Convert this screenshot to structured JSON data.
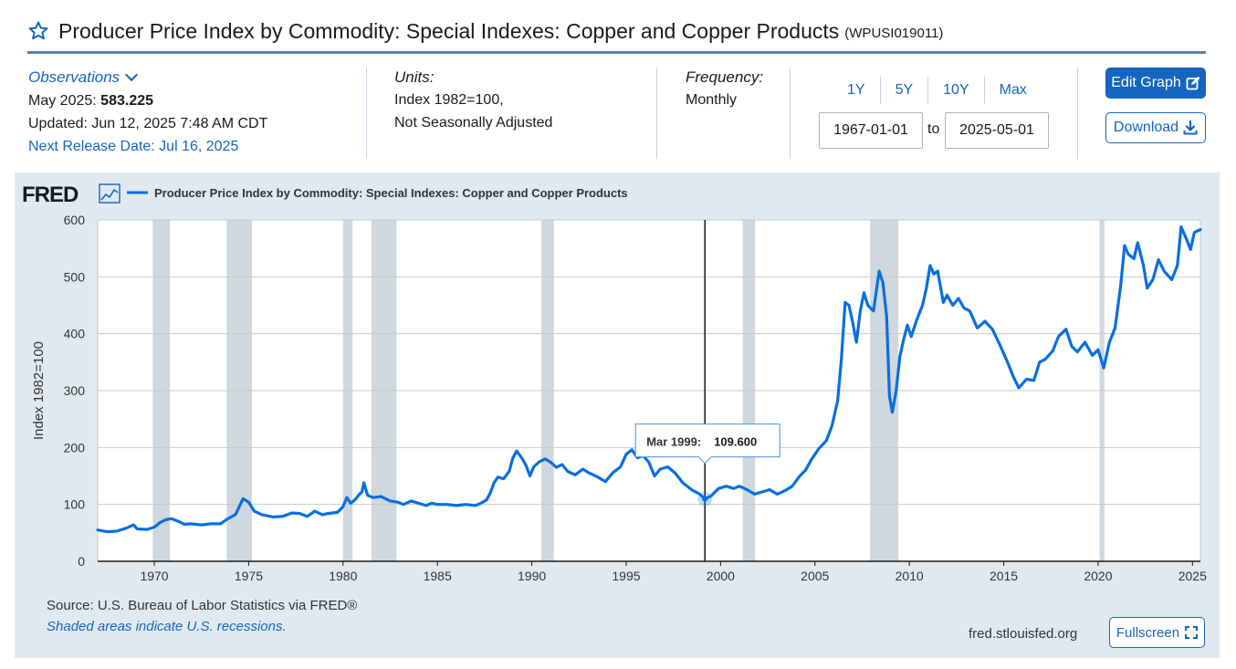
{
  "header": {
    "title": "Producer Price Index by Commodity: Special Indexes: Copper and Copper Products",
    "series_id": "(WPUSI019011)"
  },
  "observations": {
    "toggle_label": "Observations",
    "latest_label": "May 2025:",
    "latest_value": "583.225",
    "updated": "Updated: Jun 12, 2025 7:48 AM CDT",
    "next_release": "Next Release Date: Jul 16, 2025"
  },
  "units": {
    "label": "Units:",
    "line1": "Index 1982=100,",
    "line2": "Not Seasonally Adjusted"
  },
  "frequency": {
    "label": "Frequency:",
    "value": "Monthly"
  },
  "range": {
    "buttons": [
      "1Y",
      "5Y",
      "10Y",
      "Max"
    ],
    "start": "1967-01-01",
    "to_label": "to",
    "end": "2025-05-01"
  },
  "actions": {
    "edit": "Edit Graph",
    "download": "Download",
    "fullscreen": "Fullscreen"
  },
  "footer": {
    "source": "Source: U.S. Bureau of Labor Statistics via FRED®",
    "shading_note": "Shaded areas indicate U.S. recessions.",
    "site": "fred.stlouisfed.org"
  },
  "colors": {
    "accent": "#1565c0",
    "line": "#0a6ee0",
    "recession": "#d0d8df",
    "panel": "#e1e9f0"
  },
  "chart_data": {
    "type": "line",
    "logo": "FRED",
    "legend": "Producer Price Index by Commodity: Special Indexes: Copper and Copper Products",
    "ylabel": "Index 1982=100",
    "xlim": [
      1967.0,
      2025.42
    ],
    "ylim": [
      0,
      600
    ],
    "yticks": [
      0,
      100,
      200,
      300,
      400,
      500,
      600
    ],
    "xticks": [
      1970,
      1975,
      1980,
      1985,
      1990,
      1995,
      2000,
      2005,
      2010,
      2015,
      2020,
      2025
    ],
    "grid": true,
    "recessions": [
      [
        1969.92,
        1970.83
      ],
      [
        1973.83,
        1975.17
      ],
      [
        1980.0,
        1980.5
      ],
      [
        1981.5,
        1982.83
      ],
      [
        1990.5,
        1991.17
      ],
      [
        2001.17,
        2001.83
      ],
      [
        2007.92,
        2009.42
      ],
      [
        2020.08,
        2020.33
      ]
    ],
    "tooltip": {
      "label": "Mar 1999:",
      "value": "109.600",
      "x": 1999.17,
      "y": 109.6
    },
    "series": [
      {
        "name": "Producer Price Index by Commodity: Special Indexes: Copper and Copper Products",
        "points": [
          [
            1967.0,
            55
          ],
          [
            1967.5,
            52
          ],
          [
            1968.0,
            53
          ],
          [
            1968.5,
            58
          ],
          [
            1968.9,
            64
          ],
          [
            1969.1,
            57
          ],
          [
            1969.6,
            56
          ],
          [
            1970.0,
            60
          ],
          [
            1970.3,
            68
          ],
          [
            1970.6,
            73
          ],
          [
            1970.9,
            75
          ],
          [
            1971.3,
            70
          ],
          [
            1971.6,
            65
          ],
          [
            1971.9,
            66
          ],
          [
            1972.5,
            64
          ],
          [
            1973.0,
            66
          ],
          [
            1973.5,
            66
          ],
          [
            1973.9,
            75
          ],
          [
            1974.3,
            82
          ],
          [
            1974.5,
            96
          ],
          [
            1974.7,
            110
          ],
          [
            1975.0,
            104
          ],
          [
            1975.3,
            88
          ],
          [
            1975.7,
            82
          ],
          [
            1976.3,
            78
          ],
          [
            1976.8,
            79
          ],
          [
            1977.3,
            85
          ],
          [
            1977.7,
            84
          ],
          [
            1978.1,
            79
          ],
          [
            1978.5,
            88
          ],
          [
            1978.9,
            82
          ],
          [
            1979.2,
            84
          ],
          [
            1979.7,
            86
          ],
          [
            1980.0,
            96
          ],
          [
            1980.2,
            112
          ],
          [
            1980.4,
            102
          ],
          [
            1980.6,
            107
          ],
          [
            1980.9,
            119
          ],
          [
            1981.0,
            122
          ],
          [
            1981.1,
            138
          ],
          [
            1981.3,
            116
          ],
          [
            1981.6,
            112
          ],
          [
            1982.0,
            114
          ],
          [
            1982.5,
            106
          ],
          [
            1982.9,
            104
          ],
          [
            1983.2,
            100
          ],
          [
            1983.6,
            106
          ],
          [
            1984.0,
            102
          ],
          [
            1984.4,
            98
          ],
          [
            1984.7,
            102
          ],
          [
            1985.0,
            100
          ],
          [
            1985.5,
            100
          ],
          [
            1986.0,
            98
          ],
          [
            1986.5,
            100
          ],
          [
            1987.0,
            98
          ],
          [
            1987.3,
            102
          ],
          [
            1987.6,
            108
          ],
          [
            1987.8,
            120
          ],
          [
            1988.0,
            138
          ],
          [
            1988.2,
            148
          ],
          [
            1988.5,
            145
          ],
          [
            1988.8,
            158
          ],
          [
            1989.0,
            182
          ],
          [
            1989.2,
            194
          ],
          [
            1989.5,
            180
          ],
          [
            1989.7,
            168
          ],
          [
            1989.9,
            150
          ],
          [
            1990.1,
            166
          ],
          [
            1990.4,
            175
          ],
          [
            1990.7,
            180
          ],
          [
            1991.0,
            174
          ],
          [
            1991.3,
            165
          ],
          [
            1991.6,
            170
          ],
          [
            1991.9,
            158
          ],
          [
            1992.3,
            152
          ],
          [
            1992.7,
            162
          ],
          [
            1993.0,
            156
          ],
          [
            1993.5,
            148
          ],
          [
            1993.9,
            140
          ],
          [
            1994.3,
            156
          ],
          [
            1994.7,
            166
          ],
          [
            1995.0,
            188
          ],
          [
            1995.3,
            196
          ],
          [
            1995.6,
            182
          ],
          [
            1995.9,
            186
          ],
          [
            1996.2,
            174
          ],
          [
            1996.5,
            150
          ],
          [
            1996.8,
            162
          ],
          [
            1997.2,
            166
          ],
          [
            1997.6,
            155
          ],
          [
            1998.0,
            138
          ],
          [
            1998.5,
            125
          ],
          [
            1998.9,
            118
          ],
          [
            1999.17,
            109.6
          ],
          [
            1999.5,
            115
          ],
          [
            1999.9,
            128
          ],
          [
            2000.3,
            132
          ],
          [
            2000.7,
            128
          ],
          [
            2001.0,
            132
          ],
          [
            2001.4,
            126
          ],
          [
            2001.8,
            118
          ],
          [
            2002.2,
            122
          ],
          [
            2002.6,
            126
          ],
          [
            2003.0,
            118
          ],
          [
            2003.4,
            124
          ],
          [
            2003.8,
            132
          ],
          [
            2004.2,
            150
          ],
          [
            2004.5,
            160
          ],
          [
            2004.8,
            178
          ],
          [
            2005.2,
            198
          ],
          [
            2005.6,
            212
          ],
          [
            2005.9,
            238
          ],
          [
            2006.2,
            282
          ],
          [
            2006.4,
            355
          ],
          [
            2006.6,
            455
          ],
          [
            2006.8,
            450
          ],
          [
            2007.0,
            420
          ],
          [
            2007.2,
            385
          ],
          [
            2007.4,
            440
          ],
          [
            2007.6,
            472
          ],
          [
            2007.8,
            450
          ],
          [
            2008.1,
            440
          ],
          [
            2008.4,
            510
          ],
          [
            2008.6,
            490
          ],
          [
            2008.8,
            430
          ],
          [
            2008.95,
            290
          ],
          [
            2009.1,
            262
          ],
          [
            2009.3,
            300
          ],
          [
            2009.5,
            360
          ],
          [
            2009.7,
            390
          ],
          [
            2009.9,
            415
          ],
          [
            2010.1,
            395
          ],
          [
            2010.4,
            425
          ],
          [
            2010.7,
            450
          ],
          [
            2010.9,
            480
          ],
          [
            2011.1,
            520
          ],
          [
            2011.3,
            505
          ],
          [
            2011.5,
            510
          ],
          [
            2011.8,
            455
          ],
          [
            2012.0,
            468
          ],
          [
            2012.3,
            450
          ],
          [
            2012.6,
            462
          ],
          [
            2012.9,
            445
          ],
          [
            2013.2,
            440
          ],
          [
            2013.6,
            410
          ],
          [
            2014.0,
            422
          ],
          [
            2014.4,
            408
          ],
          [
            2014.8,
            380
          ],
          [
            2015.2,
            350
          ],
          [
            2015.5,
            325
          ],
          [
            2015.8,
            305
          ],
          [
            2016.2,
            320
          ],
          [
            2016.6,
            318
          ],
          [
            2016.9,
            350
          ],
          [
            2017.2,
            355
          ],
          [
            2017.6,
            370
          ],
          [
            2017.9,
            395
          ],
          [
            2018.3,
            408
          ],
          [
            2018.6,
            378
          ],
          [
            2018.9,
            368
          ],
          [
            2019.3,
            385
          ],
          [
            2019.7,
            362
          ],
          [
            2020.0,
            372
          ],
          [
            2020.3,
            340
          ],
          [
            2020.6,
            385
          ],
          [
            2020.9,
            410
          ],
          [
            2021.2,
            485
          ],
          [
            2021.4,
            555
          ],
          [
            2021.6,
            540
          ],
          [
            2021.9,
            532
          ],
          [
            2022.1,
            560
          ],
          [
            2022.4,
            520
          ],
          [
            2022.6,
            480
          ],
          [
            2022.9,
            495
          ],
          [
            2023.2,
            530
          ],
          [
            2023.5,
            510
          ],
          [
            2023.9,
            495
          ],
          [
            2024.2,
            520
          ],
          [
            2024.4,
            588
          ],
          [
            2024.7,
            565
          ],
          [
            2024.9,
            548
          ],
          [
            2025.1,
            578
          ],
          [
            2025.42,
            583.2
          ]
        ]
      }
    ]
  }
}
